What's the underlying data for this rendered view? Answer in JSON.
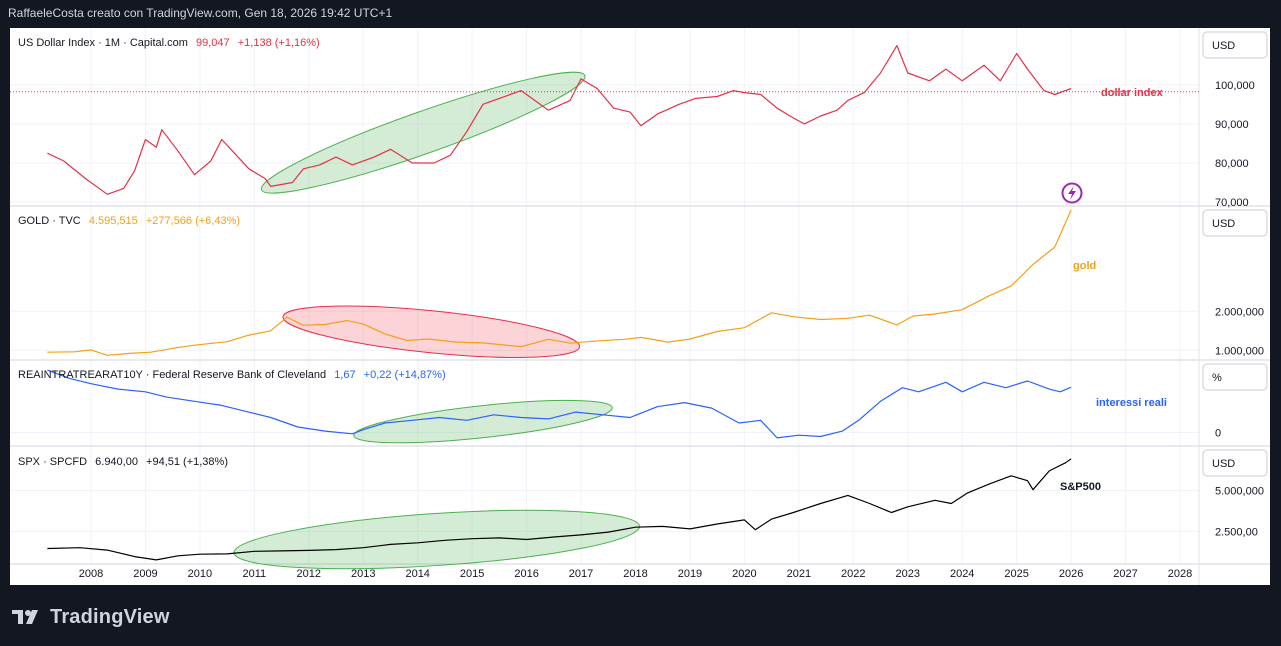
{
  "header": {
    "text": "RaffaeleCosta creato con TradingView.com, Gen 18, 2026 19:42 UTC+1"
  },
  "brand": {
    "name": "TradingView"
  },
  "colors": {
    "dxy": "#e53148",
    "gold": "#f59f16",
    "real": "#2962ff",
    "spx": "#000000",
    "green_ellipse": "#4caf50",
    "red_ellipse": "#e53148"
  },
  "chart_data": {
    "type": "line",
    "x_axis": {
      "ticks": [
        "2008",
        "2009",
        "2010",
        "2011",
        "2012",
        "2013",
        "2014",
        "2015",
        "2016",
        "2017",
        "2018",
        "2019",
        "2020",
        "2021",
        "2022",
        "2023",
        "2024",
        "2025",
        "2026",
        "2027",
        "2028"
      ]
    },
    "panes": [
      {
        "id": "dxy",
        "legend": {
          "symbol": "US Dollar Index · 1M · Capital.com",
          "last": "99,047",
          "change": "+1,138 (+1,16%)"
        },
        "currency": "USD",
        "yticks": [
          "100,000",
          "90,000",
          "80,000",
          "70,000"
        ],
        "ylim": [
          69000,
          114000
        ],
        "line_label": "dollar index",
        "hline": 98.2,
        "points": [
          [
            2007.2,
            82.5
          ],
          [
            2007.5,
            80.5
          ],
          [
            2007.9,
            76
          ],
          [
            2008.3,
            72
          ],
          [
            2008.6,
            73.5
          ],
          [
            2008.8,
            78
          ],
          [
            2009.0,
            86
          ],
          [
            2009.2,
            84
          ],
          [
            2009.3,
            88.5
          ],
          [
            2009.6,
            83
          ],
          [
            2009.9,
            77
          ],
          [
            2010.2,
            80.5
          ],
          [
            2010.4,
            86
          ],
          [
            2010.6,
            83
          ],
          [
            2010.9,
            78.5
          ],
          [
            2011.2,
            76
          ],
          [
            2011.3,
            74
          ],
          [
            2011.7,
            75
          ],
          [
            2011.9,
            78.5
          ],
          [
            2012.2,
            79.5
          ],
          [
            2012.5,
            81.5
          ],
          [
            2012.8,
            79.5
          ],
          [
            2013.2,
            81.5
          ],
          [
            2013.5,
            83.5
          ],
          [
            2013.9,
            80
          ],
          [
            2014.3,
            80
          ],
          [
            2014.6,
            82
          ],
          [
            2014.9,
            88
          ],
          [
            2015.2,
            95
          ],
          [
            2015.5,
            96.5
          ],
          [
            2015.9,
            98.5
          ],
          [
            2016.2,
            95.5
          ],
          [
            2016.4,
            93.5
          ],
          [
            2016.8,
            96
          ],
          [
            2017.0,
            101.5
          ],
          [
            2017.3,
            99
          ],
          [
            2017.6,
            94
          ],
          [
            2017.9,
            93
          ],
          [
            2018.1,
            89.5
          ],
          [
            2018.4,
            92.5
          ],
          [
            2018.8,
            95
          ],
          [
            2019.1,
            96.5
          ],
          [
            2019.5,
            97
          ],
          [
            2019.8,
            98.5
          ],
          [
            2020.0,
            98
          ],
          [
            2020.3,
            97.5
          ],
          [
            2020.6,
            94
          ],
          [
            2020.9,
            91.5
          ],
          [
            2021.1,
            90
          ],
          [
            2021.4,
            92
          ],
          [
            2021.7,
            93.5
          ],
          [
            2021.9,
            96
          ],
          [
            2022.2,
            98
          ],
          [
            2022.5,
            103
          ],
          [
            2022.8,
            110
          ],
          [
            2023.0,
            103
          ],
          [
            2023.4,
            101
          ],
          [
            2023.7,
            104
          ],
          [
            2024.0,
            101
          ],
          [
            2024.4,
            105
          ],
          [
            2024.7,
            101
          ],
          [
            2025.0,
            108
          ],
          [
            2025.2,
            104
          ],
          [
            2025.5,
            98.5
          ],
          [
            2025.7,
            97.5
          ],
          [
            2026.0,
            99.05
          ]
        ]
      },
      {
        "id": "gold",
        "legend": {
          "symbol": "GOLD · TVC",
          "last": "4.595,515",
          "change": "+277,566 (+6,43%)"
        },
        "currency": "USD",
        "yticks": [
          "2.000,000",
          "1.000,000"
        ],
        "ylim": [
          750,
          4650
        ],
        "line_label": "gold",
        "points": [
          [
            2007.2,
            950
          ],
          [
            2007.7,
            960
          ],
          [
            2008.0,
            1010
          ],
          [
            2008.3,
            870
          ],
          [
            2008.7,
            920
          ],
          [
            2009.1,
            950
          ],
          [
            2009.5,
            1050
          ],
          [
            2009.9,
            1130
          ],
          [
            2010.5,
            1220
          ],
          [
            2010.9,
            1390
          ],
          [
            2011.3,
            1500
          ],
          [
            2011.6,
            1850
          ],
          [
            2011.9,
            1640
          ],
          [
            2012.3,
            1660
          ],
          [
            2012.7,
            1760
          ],
          [
            2013.0,
            1670
          ],
          [
            2013.4,
            1420
          ],
          [
            2013.8,
            1250
          ],
          [
            2014.2,
            1290
          ],
          [
            2014.7,
            1210
          ],
          [
            2015.2,
            1190
          ],
          [
            2015.9,
            1090
          ],
          [
            2016.4,
            1280
          ],
          [
            2016.8,
            1180
          ],
          [
            2017.2,
            1230
          ],
          [
            2017.8,
            1280
          ],
          [
            2018.1,
            1330
          ],
          [
            2018.6,
            1210
          ],
          [
            2019.0,
            1290
          ],
          [
            2019.5,
            1480
          ],
          [
            2020.0,
            1580
          ],
          [
            2020.5,
            1960
          ],
          [
            2020.9,
            1860
          ],
          [
            2021.4,
            1790
          ],
          [
            2021.9,
            1820
          ],
          [
            2022.3,
            1900
          ],
          [
            2022.8,
            1650
          ],
          [
            2023.1,
            1880
          ],
          [
            2023.5,
            1930
          ],
          [
            2024.0,
            2040
          ],
          [
            2024.5,
            2400
          ],
          [
            2024.9,
            2650
          ],
          [
            2025.3,
            3200
          ],
          [
            2025.7,
            3650
          ],
          [
            2026.0,
            4595
          ]
        ]
      },
      {
        "id": "real",
        "legend": {
          "symbol": "REAINTRATREARAT10Y · Federal Reserve Bank of Cleveland",
          "last": "1,67",
          "change": "+0,22 (+14,87%)"
        },
        "currency": "%",
        "yticks": [
          "0"
        ],
        "ylim": [
          -0.5,
          2.6
        ],
        "line_label": "interessi reali",
        "points": [
          [
            2007.2,
            2.3
          ],
          [
            2007.6,
            2.0
          ],
          [
            2008.0,
            1.8
          ],
          [
            2008.5,
            1.6
          ],
          [
            2009.0,
            1.5
          ],
          [
            2009.4,
            1.3
          ],
          [
            2009.9,
            1.15
          ],
          [
            2010.4,
            1.0
          ],
          [
            2010.8,
            0.8
          ],
          [
            2011.3,
            0.55
          ],
          [
            2011.8,
            0.2
          ],
          [
            2012.3,
            0.05
          ],
          [
            2012.8,
            -0.05
          ],
          [
            2013.0,
            0.1
          ],
          [
            2013.4,
            0.35
          ],
          [
            2013.9,
            0.45
          ],
          [
            2014.4,
            0.55
          ],
          [
            2014.9,
            0.45
          ],
          [
            2015.4,
            0.65
          ],
          [
            2015.9,
            0.55
          ],
          [
            2016.4,
            0.5
          ],
          [
            2016.9,
            0.75
          ],
          [
            2017.4,
            0.65
          ],
          [
            2017.9,
            0.55
          ],
          [
            2018.4,
            0.95
          ],
          [
            2018.9,
            1.1
          ],
          [
            2019.4,
            0.9
          ],
          [
            2019.9,
            0.35
          ],
          [
            2020.3,
            0.45
          ],
          [
            2020.6,
            -0.2
          ],
          [
            2021.0,
            -0.1
          ],
          [
            2021.4,
            -0.15
          ],
          [
            2021.8,
            0.05
          ],
          [
            2022.1,
            0.45
          ],
          [
            2022.5,
            1.15
          ],
          [
            2022.9,
            1.65
          ],
          [
            2023.2,
            1.5
          ],
          [
            2023.7,
            1.85
          ],
          [
            2024.0,
            1.5
          ],
          [
            2024.4,
            1.85
          ],
          [
            2024.8,
            1.65
          ],
          [
            2025.2,
            1.9
          ],
          [
            2025.6,
            1.6
          ],
          [
            2025.8,
            1.5
          ],
          [
            2026.0,
            1.67
          ]
        ]
      },
      {
        "id": "spx",
        "legend": {
          "symbol": "SPX · SPCFD",
          "last": "6.940,00",
          "change": "+94,51 (+1,38%)"
        },
        "currency": "USD",
        "yticks": [
          "5.000,000",
          "2.500,00"
        ],
        "ylim": [
          500,
          7600
        ],
        "line_label": "S&P500",
        "points": [
          [
            2007.2,
            1450
          ],
          [
            2007.8,
            1500
          ],
          [
            2008.3,
            1350
          ],
          [
            2008.8,
            950
          ],
          [
            2009.2,
            750
          ],
          [
            2009.6,
            1000
          ],
          [
            2010.0,
            1100
          ],
          [
            2010.5,
            1120
          ],
          [
            2011.0,
            1280
          ],
          [
            2011.5,
            1300
          ],
          [
            2012.0,
            1330
          ],
          [
            2012.5,
            1380
          ],
          [
            2013.0,
            1500
          ],
          [
            2013.5,
            1700
          ],
          [
            2014.0,
            1800
          ],
          [
            2014.5,
            1950
          ],
          [
            2015.0,
            2050
          ],
          [
            2015.5,
            2100
          ],
          [
            2016.0,
            2000
          ],
          [
            2016.5,
            2150
          ],
          [
            2017.0,
            2280
          ],
          [
            2017.5,
            2450
          ],
          [
            2018.0,
            2750
          ],
          [
            2018.5,
            2800
          ],
          [
            2019.0,
            2650
          ],
          [
            2019.5,
            2950
          ],
          [
            2020.0,
            3200
          ],
          [
            2020.2,
            2600
          ],
          [
            2020.5,
            3250
          ],
          [
            2020.9,
            3650
          ],
          [
            2021.4,
            4200
          ],
          [
            2021.9,
            4700
          ],
          [
            2022.3,
            4200
          ],
          [
            2022.7,
            3650
          ],
          [
            2023.0,
            4000
          ],
          [
            2023.5,
            4400
          ],
          [
            2023.8,
            4200
          ],
          [
            2024.1,
            4850
          ],
          [
            2024.5,
            5400
          ],
          [
            2024.9,
            5900
          ],
          [
            2025.2,
            5600
          ],
          [
            2025.3,
            5050
          ],
          [
            2025.6,
            6200
          ],
          [
            2025.9,
            6700
          ],
          [
            2026.0,
            6940
          ]
        ]
      }
    ],
    "annotations": [
      {
        "pane": "dxy",
        "type": "ellipse",
        "color": "green",
        "from": [
          2011.2,
          73.5
        ],
        "to": [
          2017.0,
          102
        ]
      },
      {
        "pane": "gold",
        "type": "ellipse",
        "color": "red",
        "from": [
          2011.6,
          1850
        ],
        "to": [
          2016.9,
          1100
        ]
      },
      {
        "pane": "real",
        "type": "ellipse",
        "color": "green",
        "from": [
          2012.9,
          -0.1
        ],
        "to": [
          2017.5,
          0.9
        ]
      },
      {
        "pane": "spx",
        "type": "ellipse",
        "color": "green",
        "from": [
          2010.7,
          1200
        ],
        "to": [
          2018.0,
          2800
        ]
      }
    ]
  }
}
